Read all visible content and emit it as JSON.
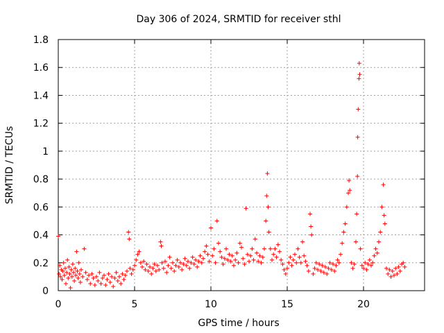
{
  "chart_data": {
    "type": "scatter",
    "title": "Day 306 of 2024, SRMTID for receiver sthl",
    "xlabel": "GPS time / hours",
    "ylabel": "SRMTID / TECUs",
    "xlim": [
      0,
      24
    ],
    "ylim": [
      0,
      1.8
    ],
    "xticks": [
      0,
      5,
      10,
      15,
      20
    ],
    "xtick_labels": [
      "0",
      "5",
      "10",
      "15",
      "20"
    ],
    "yticks": [
      0,
      0.2,
      0.4,
      0.6,
      0.8,
      1,
      1.2,
      1.4,
      1.6,
      1.8
    ],
    "ytick_labels": [
      "0",
      "0.2",
      "0.4",
      "0.6",
      "0.8",
      "1",
      "1.2",
      "1.4",
      "1.6",
      "1.8"
    ],
    "grid": true,
    "marker": "plus",
    "color": "#ff0000",
    "series": [
      {
        "name": "sthl",
        "points": [
          [
            0.0,
            0.39
          ],
          [
            0.05,
            0.12
          ],
          [
            0.1,
            0.18
          ],
          [
            0.15,
            0.1
          ],
          [
            0.2,
            0.15
          ],
          [
            0.25,
            0.08
          ],
          [
            0.3,
            0.14
          ],
          [
            0.35,
            0.2
          ],
          [
            0.4,
            0.11
          ],
          [
            0.45,
            0.16
          ],
          [
            0.5,
            0.05
          ],
          [
            0.55,
            0.13
          ],
          [
            0.6,
            0.22
          ],
          [
            0.65,
            0.09
          ],
          [
            0.7,
            0.17
          ],
          [
            0.75,
            0.12
          ],
          [
            0.8,
            0.02
          ],
          [
            0.85,
            0.15
          ],
          [
            0.9,
            0.1
          ],
          [
            0.95,
            0.19
          ],
          [
            1.0,
            0.13
          ],
          [
            1.05,
            0.07
          ],
          [
            1.1,
            0.16
          ],
          [
            1.15,
            0.11
          ],
          [
            1.2,
            0.28
          ],
          [
            1.25,
            0.14
          ],
          [
            1.3,
            0.09
          ],
          [
            1.35,
            0.2
          ],
          [
            1.4,
            0.12
          ],
          [
            1.45,
            0.06
          ],
          [
            1.5,
            0.15
          ],
          [
            1.6,
            0.1
          ],
          [
            1.7,
            0.3
          ],
          [
            1.8,
            0.13
          ],
          [
            1.9,
            0.08
          ],
          [
            2.0,
            0.11
          ],
          [
            2.1,
            0.05
          ],
          [
            2.2,
            0.12
          ],
          [
            2.3,
            0.09
          ],
          [
            2.4,
            0.04
          ],
          [
            2.5,
            0.1
          ],
          [
            2.6,
            0.07
          ],
          [
            2.7,
            0.13
          ],
          [
            2.8,
            0.05
          ],
          [
            2.9,
            0.09
          ],
          [
            3.0,
            0.11
          ],
          [
            3.1,
            0.04
          ],
          [
            3.2,
            0.08
          ],
          [
            3.3,
            0.12
          ],
          [
            3.4,
            0.06
          ],
          [
            3.5,
            0.1
          ],
          [
            3.6,
            0.03
          ],
          [
            3.7,
            0.09
          ],
          [
            3.8,
            0.13
          ],
          [
            3.9,
            0.07
          ],
          [
            4.0,
            0.1
          ],
          [
            4.1,
            0.05
          ],
          [
            4.2,
            0.12
          ],
          [
            4.3,
            0.08
          ],
          [
            4.4,
            0.11
          ],
          [
            4.5,
            0.14
          ],
          [
            4.6,
            0.42
          ],
          [
            4.65,
            0.37
          ],
          [
            4.7,
            0.16
          ],
          [
            4.8,
            0.12
          ],
          [
            4.9,
            0.15
          ],
          [
            5.0,
            0.18
          ],
          [
            5.1,
            0.22
          ],
          [
            5.2,
            0.26
          ],
          [
            5.3,
            0.28
          ],
          [
            5.4,
            0.2
          ],
          [
            5.5,
            0.17
          ],
          [
            5.6,
            0.21
          ],
          [
            5.7,
            0.15
          ],
          [
            5.8,
            0.19
          ],
          [
            5.9,
            0.14
          ],
          [
            6.0,
            0.17
          ],
          [
            6.1,
            0.12
          ],
          [
            6.2,
            0.16
          ],
          [
            6.3,
            0.19
          ],
          [
            6.4,
            0.14
          ],
          [
            6.5,
            0.18
          ],
          [
            6.6,
            0.15
          ],
          [
            6.7,
            0.35
          ],
          [
            6.75,
            0.32
          ],
          [
            6.8,
            0.2
          ],
          [
            6.9,
            0.16
          ],
          [
            7.0,
            0.21
          ],
          [
            7.1,
            0.13
          ],
          [
            7.2,
            0.18
          ],
          [
            7.3,
            0.24
          ],
          [
            7.4,
            0.16
          ],
          [
            7.5,
            0.2
          ],
          [
            7.6,
            0.14
          ],
          [
            7.7,
            0.18
          ],
          [
            7.8,
            0.22
          ],
          [
            7.9,
            0.17
          ],
          [
            8.0,
            0.2
          ],
          [
            8.1,
            0.15
          ],
          [
            8.2,
            0.19
          ],
          [
            8.3,
            0.23
          ],
          [
            8.4,
            0.18
          ],
          [
            8.5,
            0.21
          ],
          [
            8.6,
            0.16
          ],
          [
            8.7,
            0.2
          ],
          [
            8.8,
            0.24
          ],
          [
            8.9,
            0.19
          ],
          [
            9.0,
            0.22
          ],
          [
            9.1,
            0.17
          ],
          [
            9.2,
            0.21
          ],
          [
            9.3,
            0.25
          ],
          [
            9.4,
            0.2
          ],
          [
            9.5,
            0.23
          ],
          [
            9.6,
            0.28
          ],
          [
            9.7,
            0.32
          ],
          [
            9.8,
            0.26
          ],
          [
            9.9,
            0.21
          ],
          [
            10.0,
            0.45
          ],
          [
            10.1,
            0.25
          ],
          [
            10.2,
            0.3
          ],
          [
            10.3,
            0.2
          ],
          [
            10.4,
            0.5
          ],
          [
            10.5,
            0.34
          ],
          [
            10.6,
            0.28
          ],
          [
            10.7,
            0.24
          ],
          [
            10.8,
            0.19
          ],
          [
            10.9,
            0.23
          ],
          [
            11.0,
            0.3
          ],
          [
            11.1,
            0.22
          ],
          [
            11.2,
            0.26
          ],
          [
            11.3,
            0.21
          ],
          [
            11.4,
            0.25
          ],
          [
            11.5,
            0.18
          ],
          [
            11.6,
            0.22
          ],
          [
            11.7,
            0.27
          ],
          [
            11.8,
            0.2
          ],
          [
            11.9,
            0.34
          ],
          [
            12.0,
            0.31
          ],
          [
            12.1,
            0.23
          ],
          [
            12.2,
            0.19
          ],
          [
            12.3,
            0.59
          ],
          [
            12.4,
            0.26
          ],
          [
            12.5,
            0.21
          ],
          [
            12.6,
            0.25
          ],
          [
            12.7,
            0.3
          ],
          [
            12.8,
            0.22
          ],
          [
            12.9,
            0.37
          ],
          [
            13.0,
            0.27
          ],
          [
            13.1,
            0.21
          ],
          [
            13.2,
            0.25
          ],
          [
            13.3,
            0.2
          ],
          [
            13.4,
            0.24
          ],
          [
            13.5,
            0.3
          ],
          [
            13.6,
            0.5
          ],
          [
            13.65,
            0.68
          ],
          [
            13.7,
            0.84
          ],
          [
            13.75,
            0.6
          ],
          [
            13.8,
            0.42
          ],
          [
            13.9,
            0.3
          ],
          [
            14.0,
            0.22
          ],
          [
            14.1,
            0.26
          ],
          [
            14.2,
            0.3
          ],
          [
            14.3,
            0.24
          ],
          [
            14.4,
            0.33
          ],
          [
            14.5,
            0.28
          ],
          [
            14.6,
            0.22
          ],
          [
            14.7,
            0.19
          ],
          [
            14.8,
            0.15
          ],
          [
            14.9,
            0.12
          ],
          [
            15.0,
            0.16
          ],
          [
            15.1,
            0.2
          ],
          [
            15.2,
            0.24
          ],
          [
            15.3,
            0.18
          ],
          [
            15.4,
            0.22
          ],
          [
            15.5,
            0.26
          ],
          [
            15.6,
            0.2
          ],
          [
            15.7,
            0.3
          ],
          [
            15.8,
            0.24
          ],
          [
            15.9,
            0.2
          ],
          [
            16.0,
            0.35
          ],
          [
            16.1,
            0.25
          ],
          [
            16.2,
            0.21
          ],
          [
            16.3,
            0.18
          ],
          [
            16.4,
            0.14
          ],
          [
            16.5,
            0.55
          ],
          [
            16.55,
            0.46
          ],
          [
            16.6,
            0.4
          ],
          [
            16.7,
            0.12
          ],
          [
            16.8,
            0.16
          ],
          [
            16.9,
            0.2
          ],
          [
            17.0,
            0.15
          ],
          [
            17.1,
            0.19
          ],
          [
            17.2,
            0.14
          ],
          [
            17.3,
            0.18
          ],
          [
            17.4,
            0.13
          ],
          [
            17.5,
            0.17
          ],
          [
            17.6,
            0.12
          ],
          [
            17.7,
            0.16
          ],
          [
            17.8,
            0.2
          ],
          [
            17.9,
            0.15
          ],
          [
            18.0,
            0.19
          ],
          [
            18.1,
            0.14
          ],
          [
            18.2,
            0.18
          ],
          [
            18.3,
            0.22
          ],
          [
            18.4,
            0.2
          ],
          [
            18.5,
            0.26
          ],
          [
            18.6,
            0.34
          ],
          [
            18.7,
            0.42
          ],
          [
            18.8,
            0.48
          ],
          [
            18.9,
            0.6
          ],
          [
            19.0,
            0.7
          ],
          [
            19.05,
            0.79
          ],
          [
            19.1,
            0.72
          ],
          [
            19.2,
            0.2
          ],
          [
            19.3,
            0.16
          ],
          [
            19.4,
            0.19
          ],
          [
            19.5,
            0.35
          ],
          [
            19.55,
            0.55
          ],
          [
            19.6,
            0.82
          ],
          [
            19.62,
            1.1
          ],
          [
            19.65,
            1.3
          ],
          [
            19.7,
            1.52
          ],
          [
            19.72,
            1.63
          ],
          [
            19.75,
            1.55
          ],
          [
            19.8,
            0.3
          ],
          [
            19.9,
            0.18
          ],
          [
            20.0,
            0.16
          ],
          [
            20.1,
            0.2
          ],
          [
            20.2,
            0.15
          ],
          [
            20.3,
            0.19
          ],
          [
            20.4,
            0.22
          ],
          [
            20.5,
            0.18
          ],
          [
            20.6,
            0.2
          ],
          [
            20.7,
            0.25
          ],
          [
            20.8,
            0.3
          ],
          [
            20.9,
            0.27
          ],
          [
            21.0,
            0.35
          ],
          [
            21.1,
            0.42
          ],
          [
            21.2,
            0.6
          ],
          [
            21.3,
            0.76
          ],
          [
            21.35,
            0.54
          ],
          [
            21.4,
            0.48
          ],
          [
            21.5,
            0.16
          ],
          [
            21.6,
            0.12
          ],
          [
            21.7,
            0.15
          ],
          [
            21.8,
            0.1
          ],
          [
            21.9,
            0.14
          ],
          [
            22.0,
            0.11
          ],
          [
            22.1,
            0.16
          ],
          [
            22.2,
            0.12
          ],
          [
            22.3,
            0.17
          ],
          [
            22.4,
            0.14
          ],
          [
            22.5,
            0.19
          ],
          [
            22.6,
            0.2
          ],
          [
            22.7,
            0.17
          ]
        ]
      }
    ]
  }
}
